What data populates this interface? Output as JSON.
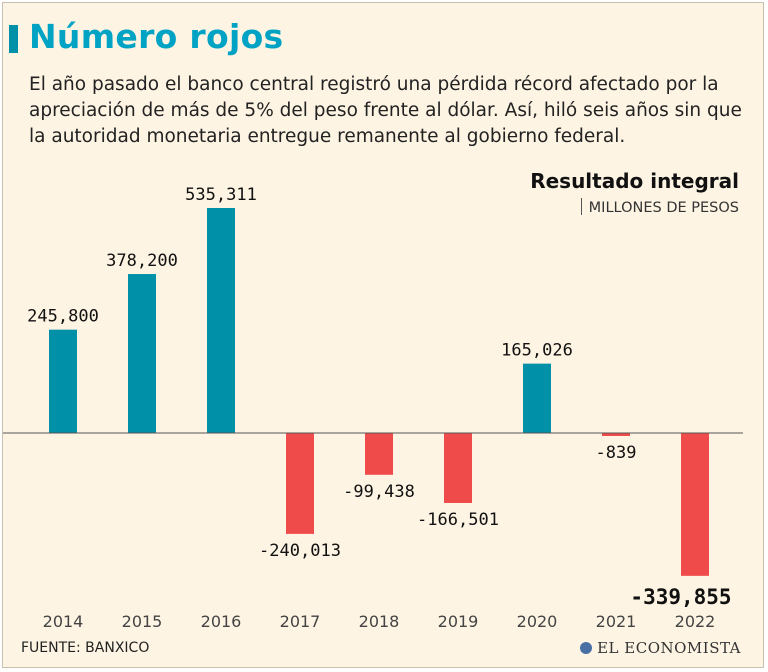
{
  "header": {
    "title": "Número rojos",
    "description": "El año pasado el banco central registró una pérdida récord afectado por la apreciación de más de 5% del peso frente al dólar. Así, hiló seis años sin que la autoridad monetaria entregue remanente al gobierno federal."
  },
  "colors": {
    "positive": "#0091a8",
    "negative": "#ef4b4b",
    "accent": "#00a3c4",
    "background": "#fdf4e3"
  },
  "chart_data": {
    "type": "bar",
    "title": "Resultado integral",
    "unit": "MILLONES DE PESOS",
    "categories": [
      "2014",
      "2015",
      "2016",
      "2017",
      "2018",
      "2019",
      "2020",
      "2021",
      "2022"
    ],
    "values": [
      245800,
      378200,
      535311,
      -240013,
      -99438,
      -166501,
      165026,
      -839,
      -339855
    ],
    "labels": [
      "245,800",
      "378,200",
      "535,311",
      "-240,013",
      "-99,438",
      "-166,501",
      "165,026",
      "-839",
      "-339,855"
    ],
    "highlight_index": 8,
    "xlabel": "",
    "ylabel": "",
    "grid": false
  },
  "footer": {
    "source": "FUENTE: BANXICO",
    "logo": "EL ECONOMISTA"
  }
}
